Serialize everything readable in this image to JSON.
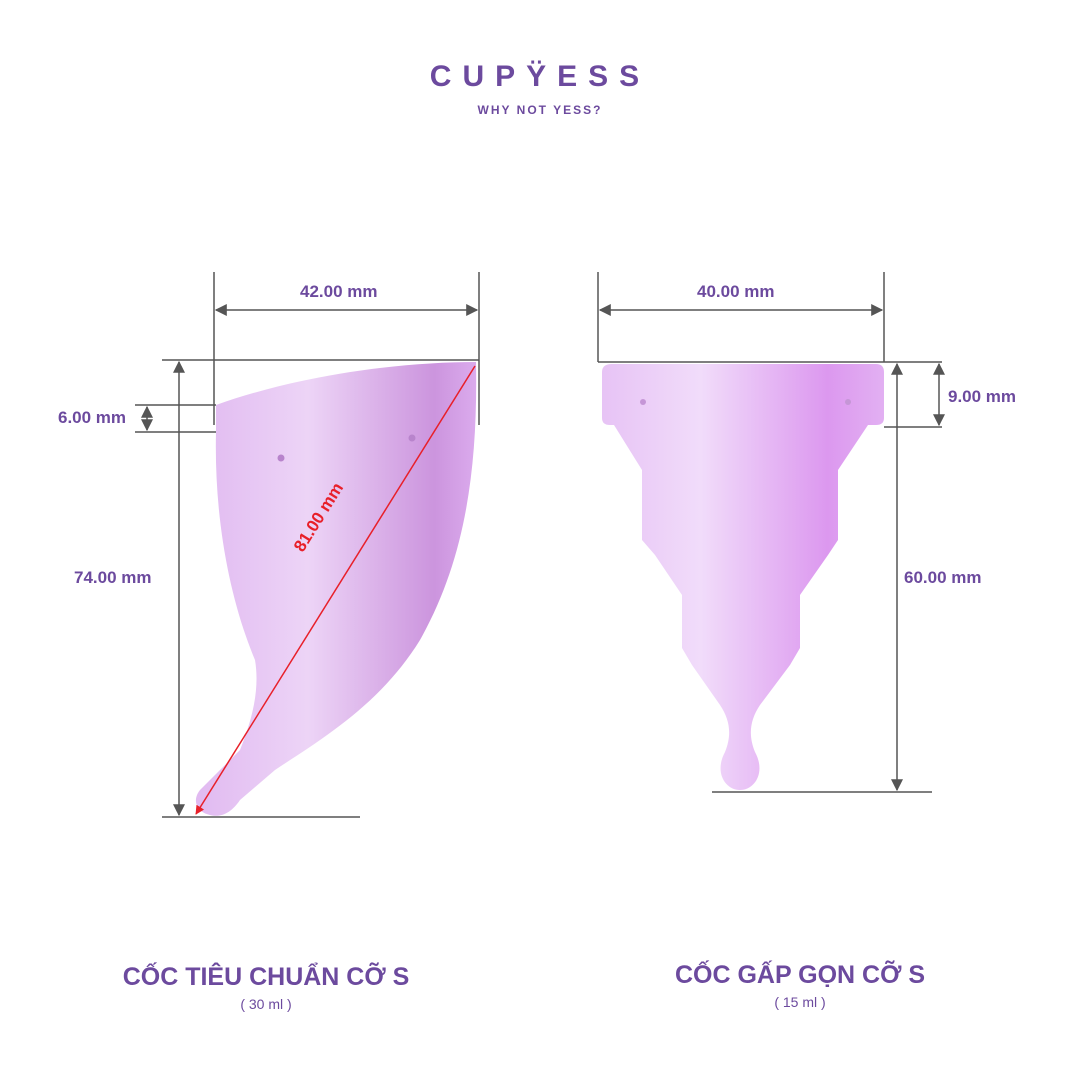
{
  "logo": {
    "brand": "CUPYESS",
    "brand_display": "CUPŸESS",
    "tagline": "WHY NOT YESS?"
  },
  "colors": {
    "text": "#6c4a9e",
    "lines": "#555555",
    "diagonal": "#e8202a",
    "cup": "#d9a6ec"
  },
  "standard_cup": {
    "title": "CỐC TIÊU CHUẨN CỠ S",
    "volume": "( 30 ml )",
    "width": "42.00 mm",
    "rim": "6.00 mm",
    "height": "74.00 mm",
    "diagonal": "81.00 mm"
  },
  "foldable_cup": {
    "title": "CỐC GẤP GỌN CỠ S",
    "volume": "( 15 ml )",
    "width": "40.00 mm",
    "rim": "9.00 mm",
    "height": "60.00 mm"
  }
}
